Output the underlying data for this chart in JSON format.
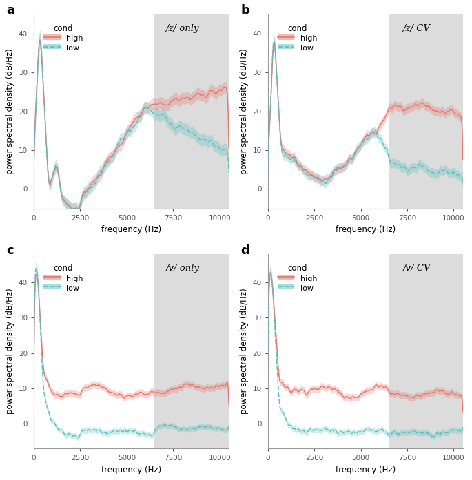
{
  "panels": [
    {
      "label": "a",
      "title": "/z/ only",
      "shade_start": 6500
    },
    {
      "label": "b",
      "title": "/z/ CV",
      "shade_start": 6500
    },
    {
      "label": "c",
      "title": "/v/ only",
      "shade_start": 6500
    },
    {
      "label": "d",
      "title": "/v/ CV",
      "shade_start": 6500
    }
  ],
  "color_high": "#E8756A",
  "color_low": "#56BFBF",
  "shade_color": "#DCDCDC",
  "shade_alpha": 1.0,
  "xlim": [
    0,
    10500
  ],
  "ylim_ab": [
    -5,
    45
  ],
  "ylim_cd": [
    -7,
    48
  ],
  "xticks": [
    0,
    2500,
    5000,
    7500,
    10000
  ],
  "yticks": [
    0,
    10,
    20,
    30,
    40
  ],
  "xlabel": "frequency (Hz)",
  "ylabel": "power spectral density (dB/Hz)",
  "legend_title": "cond",
  "legend_high": "high",
  "legend_low": "low"
}
